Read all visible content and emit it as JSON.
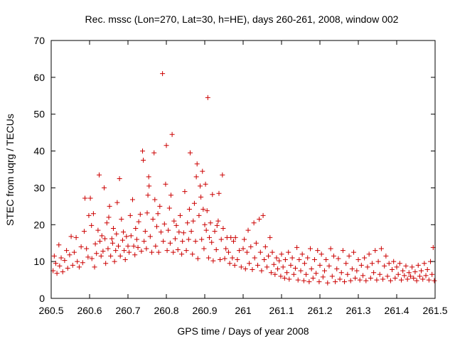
{
  "chart_data": {
    "type": "scatter",
    "title": "Rec. mssc (Lon=270, Lat=30, h=HE), days 260-261, 2008, window 002",
    "xlabel": "GPS time / Days of year 2008",
    "ylabel": "STEC from uqrg / TECUs",
    "xlim": [
      260.5,
      261.5
    ],
    "ylim": [
      0,
      70
    ],
    "grid": false,
    "x_ticks": [
      "260.5",
      "260.6",
      "260.7",
      "260.8",
      "260.9",
      "261",
      "261.1",
      "261.2",
      "261.3",
      "261.4",
      "261.5"
    ],
    "y_ticks": [
      "0",
      "10",
      "20",
      "30",
      "40",
      "50",
      "60",
      "70"
    ],
    "marker": "+",
    "marker_color": "#cc0000",
    "series": [
      {
        "points": [
          [
            260.505,
            7.5
          ],
          [
            260.508,
            11.5
          ],
          [
            260.512,
            9.5
          ],
          [
            260.515,
            6.8
          ],
          [
            260.52,
            14.5
          ],
          [
            260.522,
            8.8
          ],
          [
            260.526,
            11.0
          ],
          [
            260.53,
            7.2
          ],
          [
            260.535,
            10.3
          ],
          [
            260.54,
            13.0
          ],
          [
            260.543,
            8.2
          ],
          [
            260.548,
            11.8
          ],
          [
            260.552,
            16.8
          ],
          [
            260.556,
            9.0
          ],
          [
            260.56,
            12.5
          ],
          [
            260.565,
            16.5
          ],
          [
            260.568,
            10.0
          ],
          [
            260.573,
            8.5
          ],
          [
            260.578,
            14.0
          ],
          [
            260.582,
            9.7
          ],
          [
            260.586,
            18.2
          ],
          [
            260.588,
            27.2
          ],
          [
            260.592,
            13.5
          ],
          [
            260.596,
            11.2
          ],
          [
            260.598,
            22.5
          ],
          [
            260.602,
            27.2
          ],
          [
            260.605,
            19.8
          ],
          [
            260.606,
            10.8
          ],
          [
            260.61,
            23.0
          ],
          [
            260.613,
            8.5
          ],
          [
            260.615,
            14.8
          ],
          [
            260.618,
            12.2
          ],
          [
            260.622,
            18.5
          ],
          [
            260.625,
            33.5
          ],
          [
            260.627,
            15.5
          ],
          [
            260.63,
            11.5
          ],
          [
            260.632,
            17.0
          ],
          [
            260.635,
            12.8
          ],
          [
            260.638,
            30.0
          ],
          [
            260.64,
            16.2
          ],
          [
            260.642,
            9.5
          ],
          [
            260.645,
            20.5
          ],
          [
            260.648,
            13.5
          ],
          [
            260.65,
            22.0
          ],
          [
            260.652,
            25.0
          ],
          [
            260.655,
            11.5
          ],
          [
            260.658,
            16.2
          ],
          [
            260.66,
            15.0
          ],
          [
            260.662,
            19.0
          ],
          [
            260.665,
            10.0
          ],
          [
            260.668,
            13.0
          ],
          [
            260.67,
            17.5
          ],
          [
            260.672,
            26.0
          ],
          [
            260.675,
            14.2
          ],
          [
            260.678,
            32.5
          ],
          [
            260.68,
            11.5
          ],
          [
            260.683,
            21.5
          ],
          [
            260.686,
            15.8
          ],
          [
            260.688,
            18.0
          ],
          [
            260.69,
            13.0
          ],
          [
            260.693,
            10.5
          ],
          [
            260.696,
            16.8
          ],
          [
            260.7,
            14.2
          ],
          [
            260.703,
            12.5
          ],
          [
            260.706,
            22.5
          ],
          [
            260.708,
            17.0
          ],
          [
            260.712,
            26.8
          ],
          [
            260.715,
            14.2
          ],
          [
            260.718,
            11.8
          ],
          [
            260.72,
            19.0
          ],
          [
            260.723,
            16.0
          ],
          [
            260.726,
            13.8
          ],
          [
            260.728,
            20.8
          ],
          [
            260.732,
            22.8
          ],
          [
            260.735,
            12.8
          ],
          [
            260.738,
            40.0
          ],
          [
            260.74,
            37.5
          ],
          [
            260.742,
            15.5
          ],
          [
            260.745,
            18.2
          ],
          [
            260.748,
            13.5
          ],
          [
            260.75,
            23.2
          ],
          [
            260.752,
            28.0
          ],
          [
            260.754,
            33.0
          ],
          [
            260.755,
            30.5
          ],
          [
            260.758,
            16.8
          ],
          [
            260.762,
            12.5
          ],
          [
            260.765,
            21.5
          ],
          [
            260.768,
            39.5
          ],
          [
            260.77,
            26.8
          ],
          [
            260.772,
            14.2
          ],
          [
            260.775,
            19.5
          ],
          [
            260.778,
            23.0
          ],
          [
            260.78,
            12.5
          ],
          [
            260.783,
            25.0
          ],
          [
            260.786,
            18.0
          ],
          [
            260.79,
            61.0
          ],
          [
            260.792,
            15.5
          ],
          [
            260.795,
            20.2
          ],
          [
            260.798,
            31.0
          ],
          [
            260.8,
            41.5
          ],
          [
            260.802,
            13.0
          ],
          [
            260.805,
            18.5
          ],
          [
            260.808,
            24.5
          ],
          [
            260.81,
            15.0
          ],
          [
            260.812,
            28.0
          ],
          [
            260.815,
            44.5
          ],
          [
            260.818,
            12.5
          ],
          [
            260.82,
            21.0
          ],
          [
            260.823,
            16.2
          ],
          [
            260.826,
            19.8
          ],
          [
            260.83,
            13.2
          ],
          [
            260.833,
            18.0
          ],
          [
            260.836,
            22.5
          ],
          [
            260.84,
            12.0
          ],
          [
            260.842,
            15.5
          ],
          [
            260.845,
            17.8
          ],
          [
            260.848,
            29.0
          ],
          [
            260.852,
            13.0
          ],
          [
            260.855,
            20.5
          ],
          [
            260.858,
            16.0
          ],
          [
            260.86,
            24.2
          ],
          [
            260.862,
            39.5
          ],
          [
            260.865,
            18.2
          ],
          [
            260.868,
            12.0
          ],
          [
            260.87,
            21.0
          ],
          [
            260.873,
            25.8
          ],
          [
            260.876,
            15.5
          ],
          [
            260.878,
            33.0
          ],
          [
            260.88,
            36.5
          ],
          [
            260.882,
            10.8
          ],
          [
            260.885,
            22.5
          ],
          [
            260.888,
            30.5
          ],
          [
            260.89,
            27.5
          ],
          [
            260.892,
            16.0
          ],
          [
            260.894,
            34.5
          ],
          [
            260.896,
            24.2
          ],
          [
            260.898,
            13.5
          ],
          [
            260.9,
            20.0
          ],
          [
            260.902,
            31.0
          ],
          [
            260.904,
            18.5
          ],
          [
            260.906,
            23.8
          ],
          [
            260.908,
            54.5
          ],
          [
            260.91,
            11.0
          ],
          [
            260.912,
            16.5
          ],
          [
            260.915,
            20.5
          ],
          [
            260.918,
            15.2
          ],
          [
            260.92,
            28.2
          ],
          [
            260.922,
            10.2
          ],
          [
            260.926,
            18.2
          ],
          [
            260.93,
            13.2
          ],
          [
            260.932,
            19.8
          ],
          [
            260.935,
            21.0
          ],
          [
            260.937,
            28.5
          ],
          [
            260.94,
            10.5
          ],
          [
            260.943,
            16.0
          ],
          [
            260.946,
            33.5
          ],
          [
            260.948,
            19.0
          ],
          [
            260.952,
            10.8
          ],
          [
            260.955,
            13.5
          ],
          [
            260.958,
            16.5
          ],
          [
            260.962,
            12.5
          ],
          [
            260.965,
            9.5
          ],
          [
            260.968,
            16.5
          ],
          [
            260.972,
            11.0
          ],
          [
            260.975,
            15.5
          ],
          [
            260.978,
            9.0
          ],
          [
            260.98,
            16.5
          ],
          [
            260.985,
            10.5
          ],
          [
            260.99,
            13.0
          ],
          [
            260.995,
            8.5
          ],
          [
            261.0,
            13.5
          ],
          [
            261.003,
            16.0
          ],
          [
            261.006,
            8.0
          ],
          [
            261.01,
            12.5
          ],
          [
            261.013,
            18.5
          ],
          [
            261.016,
            9.5
          ],
          [
            261.02,
            14.0
          ],
          [
            261.024,
            7.8
          ],
          [
            261.028,
            20.5
          ],
          [
            261.03,
            11.0
          ],
          [
            261.034,
            15.0
          ],
          [
            261.038,
            9.0
          ],
          [
            261.042,
            21.5
          ],
          [
            261.045,
            12.5
          ],
          [
            261.048,
            7.5
          ],
          [
            261.052,
            22.5
          ],
          [
            261.055,
            10.5
          ],
          [
            261.058,
            14.0
          ],
          [
            261.062,
            8.5
          ],
          [
            261.066,
            11.5
          ],
          [
            261.07,
            16.5
          ],
          [
            261.073,
            7.0
          ],
          [
            261.076,
            12.5
          ],
          [
            261.08,
            9.2
          ],
          [
            261.083,
            6.5
          ],
          [
            261.087,
            11.0
          ],
          [
            261.09,
            8.0
          ],
          [
            261.094,
            10.2
          ],
          [
            261.098,
            6.0
          ],
          [
            261.1,
            12.0
          ],
          [
            261.104,
            8.5
          ],
          [
            261.108,
            5.5
          ],
          [
            261.11,
            10.5
          ],
          [
            261.114,
            7.0
          ],
          [
            261.118,
            12.5
          ],
          [
            261.12,
            5.2
          ],
          [
            261.124,
            9.0
          ],
          [
            261.128,
            11.0
          ],
          [
            261.132,
            6.5
          ],
          [
            261.136,
            8.2
          ],
          [
            261.14,
            13.8
          ],
          [
            261.143,
            5.0
          ],
          [
            261.146,
            10.5
          ],
          [
            261.15,
            7.5
          ],
          [
            261.154,
            12.0
          ],
          [
            261.158,
            4.8
          ],
          [
            261.16,
            9.5
          ],
          [
            261.164,
            6.5
          ],
          [
            261.168,
            11.0
          ],
          [
            261.172,
            4.5
          ],
          [
            261.175,
            13.5
          ],
          [
            261.178,
            8.0
          ],
          [
            261.182,
            5.5
          ],
          [
            261.186,
            10.5
          ],
          [
            261.19,
            6.8
          ],
          [
            261.194,
            13.0
          ],
          [
            261.198,
            4.5
          ],
          [
            261.2,
            9.0
          ],
          [
            261.204,
            12.0
          ],
          [
            261.208,
            5.8
          ],
          [
            261.212,
            7.5
          ],
          [
            261.216,
            10.5
          ],
          [
            261.22,
            4.2
          ],
          [
            261.224,
            8.8
          ],
          [
            261.228,
            13.5
          ],
          [
            261.232,
            6.0
          ],
          [
            261.236,
            11.5
          ],
          [
            261.24,
            4.5
          ],
          [
            261.244,
            8.0
          ],
          [
            261.248,
            10.8
          ],
          [
            261.252,
            5.2
          ],
          [
            261.256,
            7.0
          ],
          [
            261.26,
            13.0
          ],
          [
            261.264,
            4.5
          ],
          [
            261.268,
            9.5
          ],
          [
            261.272,
            6.5
          ],
          [
            261.276,
            11.5
          ],
          [
            261.28,
            4.8
          ],
          [
            261.284,
            8.0
          ],
          [
            261.288,
            12.5
          ],
          [
            261.292,
            5.5
          ],
          [
            261.296,
            7.5
          ],
          [
            261.3,
            10.5
          ],
          [
            261.304,
            5.0
          ],
          [
            261.308,
            9.0
          ],
          [
            261.312,
            6.2
          ],
          [
            261.316,
            11.0
          ],
          [
            261.32,
            4.8
          ],
          [
            261.324,
            8.5
          ],
          [
            261.328,
            12.0
          ],
          [
            261.332,
            5.5
          ],
          [
            261.336,
            9.5
          ],
          [
            261.34,
            7.0
          ],
          [
            261.344,
            13.0
          ],
          [
            261.348,
            5.0
          ],
          [
            261.352,
            10.0
          ],
          [
            261.356,
            6.5
          ],
          [
            261.36,
            13.5
          ],
          [
            261.364,
            5.2
          ],
          [
            261.368,
            8.8
          ],
          [
            261.372,
            11.5
          ],
          [
            261.376,
            6.0
          ],
          [
            261.38,
            9.5
          ],
          [
            261.384,
            4.8
          ],
          [
            261.388,
            7.8
          ],
          [
            261.392,
            10.0
          ],
          [
            261.396,
            5.5
          ],
          [
            261.4,
            8.5
          ],
          [
            261.404,
            6.5
          ],
          [
            261.408,
            9.5
          ],
          [
            261.412,
            5.0
          ],
          [
            261.416,
            7.5
          ],
          [
            261.42,
            6.2
          ],
          [
            261.424,
            8.8
          ],
          [
            261.428,
            5.2
          ],
          [
            261.432,
            7.0
          ],
          [
            261.436,
            6.0
          ],
          [
            261.44,
            8.5
          ],
          [
            261.444,
            5.5
          ],
          [
            261.448,
            7.2
          ],
          [
            261.452,
            4.8
          ],
          [
            261.456,
            9.0
          ],
          [
            261.46,
            6.0
          ],
          [
            261.464,
            7.5
          ],
          [
            261.468,
            5.2
          ],
          [
            261.472,
            9.5
          ],
          [
            261.476,
            6.2
          ],
          [
            261.48,
            7.8
          ],
          [
            261.484,
            5.0
          ],
          [
            261.488,
            10.0
          ],
          [
            261.492,
            6.5
          ],
          [
            261.495,
            13.8
          ],
          [
            261.498,
            4.8
          ]
        ]
      }
    ]
  }
}
